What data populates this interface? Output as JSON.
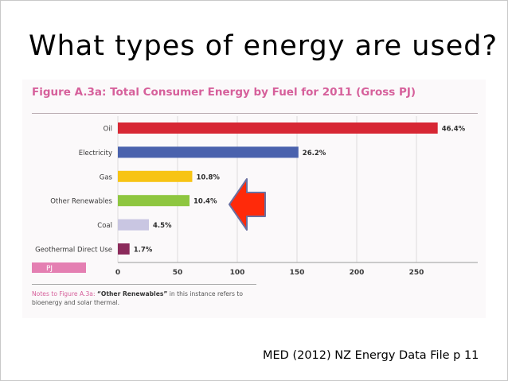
{
  "slide": {
    "title": "What types of energy are used?",
    "citation": "MED (2012) NZ Energy Data File p 11"
  },
  "figure": {
    "title": "Figure A.3a: Total Consumer Energy by Fuel for 2011 (Gross PJ)",
    "notes_label": "Notes to Figure A.3a:",
    "notes_quote": "“Other Renewables”",
    "notes_rest": " in this instance refers to bioenergy and solar thermal.",
    "accent_color": "#d6609b"
  },
  "chart_data": {
    "type": "bar",
    "orientation": "horizontal",
    "title": "Figure A.3a: Total Consumer Energy by Fuel for 2011 (Gross PJ)",
    "xlabel": "PJ",
    "ylabel": "",
    "categories": [
      "Oil",
      "Electricity",
      "Gas",
      "Other Renewables",
      "Coal",
      "Geothermal Direct Use"
    ],
    "values": [
      267.8,
      151.2,
      62.3,
      60.0,
      26.0,
      9.8
    ],
    "data_labels": [
      "46.4%",
      "26.2%",
      "10.8%",
      "10.4%",
      "4.5%",
      "1.7%"
    ],
    "colors": [
      "#d72734",
      "#4a62ad",
      "#f7c414",
      "#8ec640",
      "#c9c6e2",
      "#8b2a5b"
    ],
    "x_ticks": [
      0,
      50,
      100,
      150,
      200,
      250
    ],
    "tick_labels": [
      "0",
      "50",
      "100",
      "150",
      "200",
      "250"
    ],
    "xlim": [
      0,
      300
    ],
    "grid": true,
    "legend": "none"
  },
  "annotation": {
    "icon": "left-arrow-icon",
    "fill_color": "#ff2a0a",
    "stroke_color": "#6a6fa0",
    "points_to": "Other Renewables"
  }
}
